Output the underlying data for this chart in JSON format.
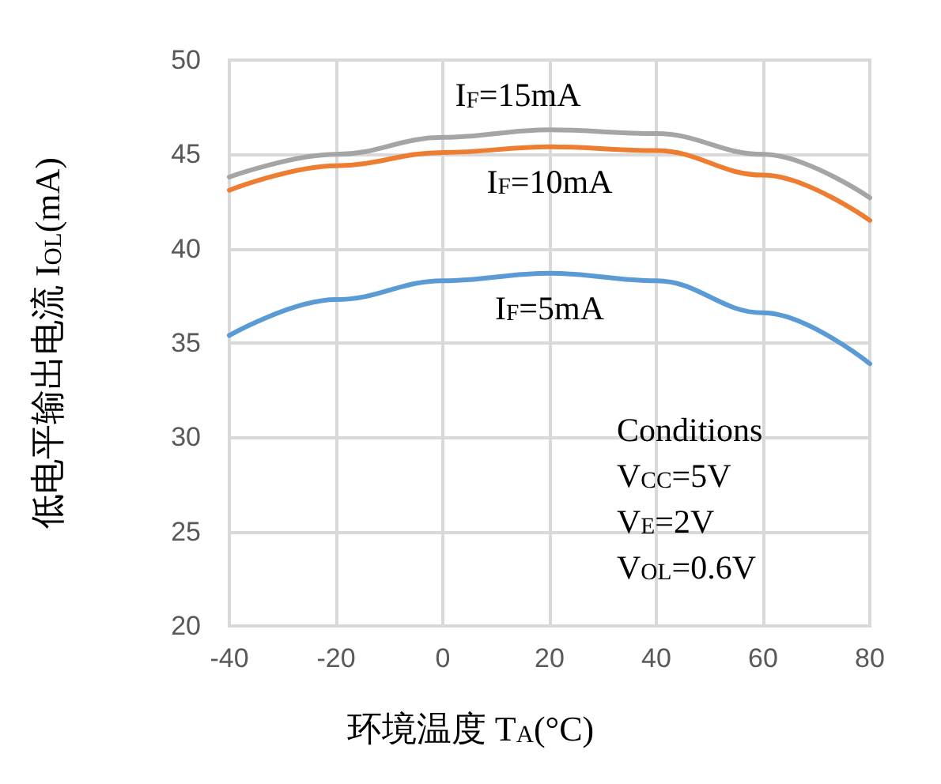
{
  "chart_data": {
    "type": "line",
    "xlabel": "环境温度 T$_{A}$(°C)",
    "ylabel": "低电平输出电流 I$_{OL}$(mA)",
    "x": [
      -40,
      -20,
      0,
      20,
      40,
      60,
      80
    ],
    "series": [
      {
        "name": "I$_{F}$=15mA",
        "color": "#a5a5a5",
        "values": [
          43.8,
          45.0,
          45.9,
          46.3,
          46.1,
          45.0,
          42.7
        ]
      },
      {
        "name": "I$_{F}$=10mA",
        "color": "#ed7d31",
        "values": [
          43.1,
          44.4,
          45.1,
          45.4,
          45.2,
          43.9,
          41.5
        ]
      },
      {
        "name": "I$_{F}$=5mA",
        "color": "#5b9bd5",
        "values": [
          35.4,
          37.3,
          38.3,
          38.7,
          38.3,
          36.6,
          33.9
        ]
      }
    ],
    "xlim": [
      -40,
      80
    ],
    "xticks": [
      -40,
      -20,
      0,
      20,
      40,
      60,
      80
    ],
    "ylim": [
      20,
      50
    ],
    "yticks": [
      20,
      25,
      30,
      35,
      40,
      45,
      50
    ],
    "grid": true,
    "legend": false,
    "marker": "none",
    "line_style": "solid",
    "annotations": [
      "Conditions",
      "V$_{CC}$=5V",
      "V$_{E}$=2V",
      "V$_{OL}$=0.6V"
    ]
  }
}
